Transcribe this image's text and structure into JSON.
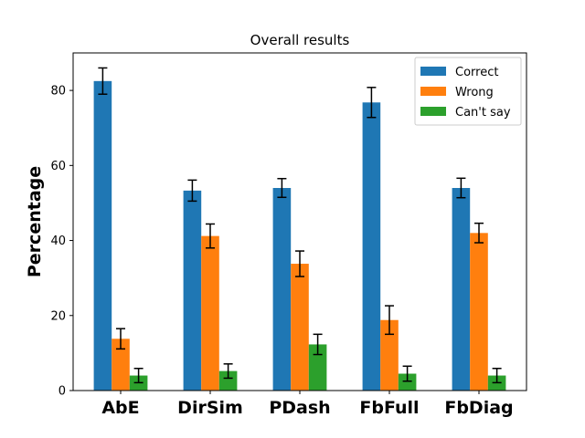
{
  "chart_data": {
    "type": "bar",
    "title": "Overall results",
    "xlabel": "",
    "ylabel": "Percentage",
    "categories": [
      "AbE",
      "DirSim",
      "PDash",
      "FbFull",
      "FbDiag"
    ],
    "ylim": [
      0,
      90
    ],
    "yticks": [
      0,
      20,
      40,
      60,
      80
    ],
    "legend_position": "top-right",
    "series": [
      {
        "name": "Correct",
        "color": "#1f77b4",
        "values": [
          82.5,
          53.3,
          54.0,
          76.8,
          54.0
        ],
        "errors": [
          3.5,
          2.8,
          2.5,
          4.0,
          2.6
        ]
      },
      {
        "name": "Wrong",
        "color": "#ff7f0e",
        "values": [
          13.8,
          41.2,
          33.8,
          18.8,
          42.0
        ],
        "errors": [
          2.7,
          3.2,
          3.4,
          3.8,
          2.6
        ]
      },
      {
        "name": "Can't say",
        "color": "#2ca02c",
        "values": [
          4.0,
          5.2,
          12.3,
          4.5,
          4.0
        ],
        "errors": [
          1.9,
          1.9,
          2.7,
          2.0,
          1.9
        ]
      }
    ]
  }
}
